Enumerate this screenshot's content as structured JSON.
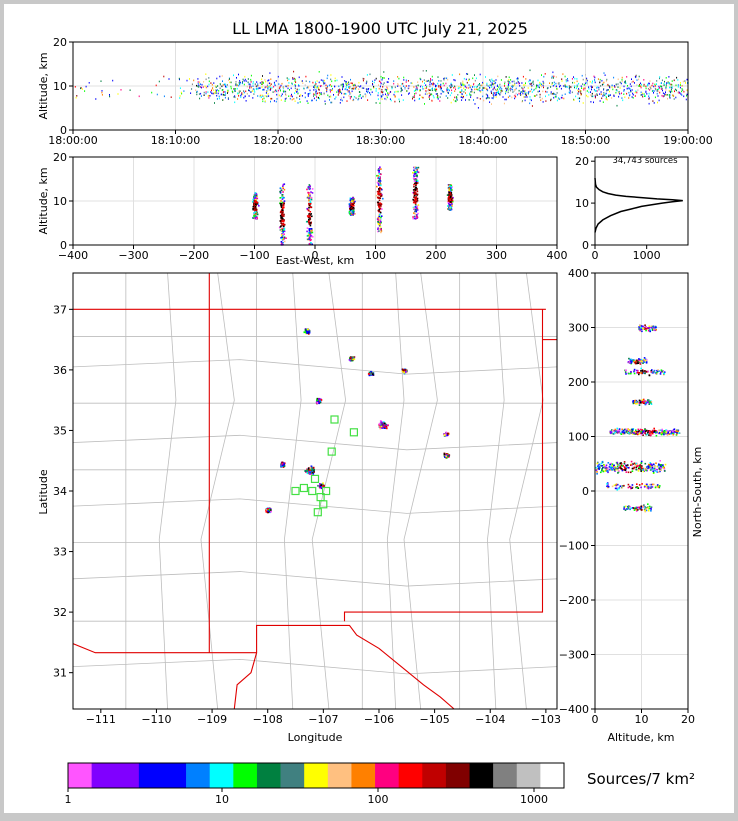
{
  "title": "LL LMA 1800-1900 UTC July 21, 2025",
  "source_count_label": "34,743 sources",
  "colorbar": {
    "label": "Sources/7 km²",
    "ticks": [
      "1",
      "10",
      "100",
      "1000"
    ],
    "colors": [
      "#ff55ff",
      "#8000ff",
      "#8000ff",
      "#0000ff",
      "#0000ff",
      "#0080ff",
      "#00ffff",
      "#00ff00",
      "#008040",
      "#408080",
      "#ffff00",
      "#ffc080",
      "#ff8000",
      "#ff0080",
      "#ff0000",
      "#c00000",
      "#800000",
      "#000000",
      "#808080",
      "#c0c0c0",
      "#ffffff"
    ]
  },
  "chart_data": [
    {
      "type": "scatter",
      "panel": "altitude-time",
      "xlabel": "",
      "ylabel": "Altitude, km",
      "x_ticks": [
        "18:00:00",
        "18:10:00",
        "18:20:00",
        "18:30:00",
        "18:40:00",
        "18:50:00",
        "19:00:00"
      ],
      "xlim": [
        "18:00:00",
        "19:00:00"
      ],
      "ylim": [
        0,
        20
      ],
      "y_ticks": [
        0,
        10,
        20
      ],
      "grid": true
    },
    {
      "type": "scatter",
      "panel": "altitude-eastwest",
      "xlabel": "East-West, km",
      "ylabel": "Altitude, km",
      "xlim": [
        -400,
        400
      ],
      "x_ticks": [
        -400,
        -300,
        -200,
        -100,
        0,
        100,
        200,
        300,
        400
      ],
      "ylim": [
        0,
        20
      ],
      "y_ticks": [
        0,
        10,
        20
      ],
      "clusters": [
        {
          "x": -100,
          "alt_range": [
            6,
            12
          ]
        },
        {
          "x": -55,
          "alt_range": [
            0,
            14
          ]
        },
        {
          "x": -10,
          "alt_range": [
            0,
            14
          ]
        },
        {
          "x": 60,
          "alt_range": [
            7,
            11
          ]
        },
        {
          "x": 105,
          "alt_range": [
            3,
            18
          ]
        },
        {
          "x": 165,
          "alt_range": [
            6,
            18
          ]
        },
        {
          "x": 222,
          "alt_range": [
            8,
            14
          ]
        }
      ],
      "grid": true
    },
    {
      "type": "line",
      "panel": "altitude-histogram",
      "xlim": [
        0,
        1800
      ],
      "x_ticks": [
        0,
        1000
      ],
      "ylim": [
        0,
        21
      ],
      "y_ticks": [
        0,
        10,
        20
      ],
      "points": [
        [
          0,
          3
        ],
        [
          20,
          4
        ],
        [
          60,
          5
        ],
        [
          150,
          6
        ],
        [
          300,
          7
        ],
        [
          500,
          8
        ],
        [
          700,
          8.6
        ],
        [
          900,
          9.2
        ],
        [
          1100,
          9.6
        ],
        [
          1300,
          10
        ],
        [
          1500,
          10.3
        ],
        [
          1700,
          10.6
        ],
        [
          1500,
          10.8
        ],
        [
          1200,
          11
        ],
        [
          900,
          11.3
        ],
        [
          600,
          11.6
        ],
        [
          400,
          11.9
        ],
        [
          250,
          12.3
        ],
        [
          150,
          12.7
        ],
        [
          80,
          13.2
        ],
        [
          30,
          13.8
        ],
        [
          10,
          14.5
        ],
        [
          0,
          16
        ]
      ]
    },
    {
      "type": "scatter",
      "panel": "map",
      "xlabel": "Longitude",
      "ylabel": "Latitude",
      "xlim": [
        -111.5,
        -102.8
      ],
      "x_ticks": [
        -111,
        -110,
        -109,
        -108,
        -107,
        -106,
        -105,
        -104,
        -103
      ],
      "ylim": [
        30.4,
        37.6
      ],
      "y_ticks": [
        31,
        32,
        33,
        34,
        35,
        36,
        37
      ],
      "clusters": [
        {
          "lon": -107.3,
          "lat": 36.65
        },
        {
          "lon": -106.5,
          "lat": 36.2
        },
        {
          "lon": -106.15,
          "lat": 35.95
        },
        {
          "lon": -105.55,
          "lat": 36.0
        },
        {
          "lon": -107.1,
          "lat": 35.5
        },
        {
          "lon": -105.95,
          "lat": 35.1
        },
        {
          "lon": -104.8,
          "lat": 34.95
        },
        {
          "lon": -107.75,
          "lat": 34.45
        },
        {
          "lon": -107.25,
          "lat": 34.35
        },
        {
          "lon": -107.05,
          "lat": 34.1
        },
        {
          "lon": -108.0,
          "lat": 33.7
        },
        {
          "lon": -104.8,
          "lat": 34.6
        }
      ],
      "stations": [
        {
          "lon": -106.8,
          "lat": 35.18
        },
        {
          "lon": -106.45,
          "lat": 34.97
        },
        {
          "lon": -106.85,
          "lat": 34.65
        },
        {
          "lon": -107.15,
          "lat": 34.2
        },
        {
          "lon": -107.35,
          "lat": 34.05
        },
        {
          "lon": -107.2,
          "lat": 34.0
        },
        {
          "lon": -106.95,
          "lat": 34.0
        },
        {
          "lon": -107.05,
          "lat": 33.9
        },
        {
          "lon": -107.0,
          "lat": 33.78
        },
        {
          "lon": -107.1,
          "lat": 33.65
        },
        {
          "lon": -107.5,
          "lat": 34.0
        }
      ]
    },
    {
      "type": "scatter",
      "panel": "northsouth-altitude",
      "xlabel": "Altitude, km",
      "ylabel": "North-South, km",
      "xlim": [
        0,
        20
      ],
      "x_ticks": [
        0,
        10,
        20
      ],
      "ylim": [
        -400,
        400
      ],
      "y_ticks": [
        -400,
        -300,
        -200,
        -100,
        0,
        100,
        200,
        300,
        400
      ],
      "clusters": [
        {
          "y": 300,
          "alt_range": [
            9,
            13
          ]
        },
        {
          "y": 240,
          "alt_range": [
            7,
            11
          ]
        },
        {
          "y": 220,
          "alt_range": [
            6,
            15
          ]
        },
        {
          "y": 165,
          "alt_range": [
            8,
            12
          ]
        },
        {
          "y": 110,
          "alt_range": [
            3,
            18
          ]
        },
        {
          "y": 45,
          "alt_range": [
            0,
            15
          ]
        },
        {
          "y": 10,
          "alt_range": [
            2,
            14
          ]
        },
        {
          "y": -30,
          "alt_range": [
            6,
            12
          ]
        }
      ],
      "grid": true
    }
  ]
}
